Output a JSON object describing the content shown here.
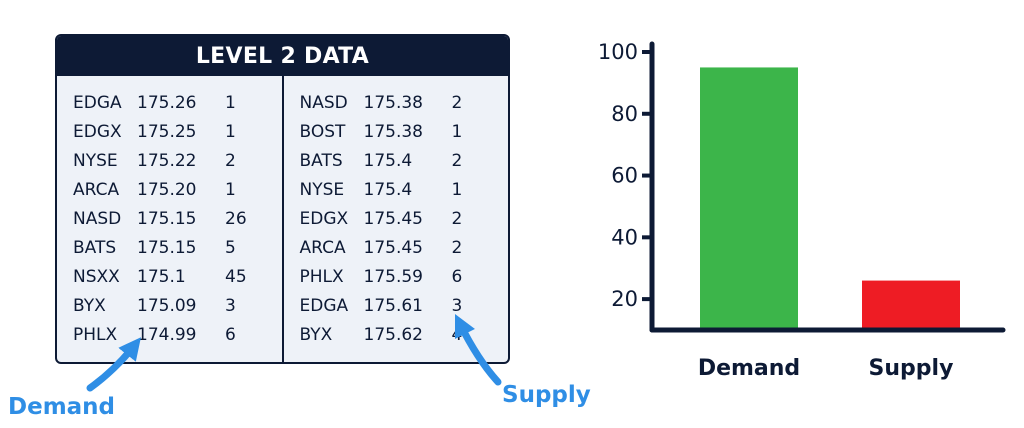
{
  "table": {
    "title": "LEVEL 2 DATA",
    "bids": [
      {
        "exchange": "EDGA",
        "price": "175.26",
        "size": "1"
      },
      {
        "exchange": "EDGX",
        "price": "175.25",
        "size": "1"
      },
      {
        "exchange": "NYSE",
        "price": "175.22",
        "size": "2"
      },
      {
        "exchange": "ARCA",
        "price": "175.20",
        "size": "1"
      },
      {
        "exchange": "NASD",
        "price": "175.15",
        "size": "26"
      },
      {
        "exchange": "BATS",
        "price": "175.15",
        "size": "5"
      },
      {
        "exchange": "NSXX",
        "price": "175.1",
        "size": "45"
      },
      {
        "exchange": "BYX",
        "price": "175.09",
        "size": "3"
      },
      {
        "exchange": "PHLX",
        "price": "174.99",
        "size": "6"
      }
    ],
    "asks": [
      {
        "exchange": "NASD",
        "price": "175.38",
        "size": "2"
      },
      {
        "exchange": "BOST",
        "price": "175.38",
        "size": "1"
      },
      {
        "exchange": "BATS",
        "price": "175.4",
        "size": "2"
      },
      {
        "exchange": "NYSE",
        "price": "175.4",
        "size": "1"
      },
      {
        "exchange": "EDGX",
        "price": "175.45",
        "size": "2"
      },
      {
        "exchange": "ARCA",
        "price": "175.45",
        "size": "2"
      },
      {
        "exchange": "PHLX",
        "price": "175.59",
        "size": "6"
      },
      {
        "exchange": "EDGA",
        "price": "175.61",
        "size": "3"
      },
      {
        "exchange": "BYX",
        "price": "175.62",
        "size": "4"
      }
    ]
  },
  "annotations": {
    "demand": "Demand",
    "supply": "Supply",
    "arrow_color": "#2f8ee5"
  },
  "chart_data": {
    "type": "bar",
    "categories": [
      "Demand",
      "Supply"
    ],
    "values": [
      95,
      26
    ],
    "colors": [
      "#3cb54a",
      "#ee1c24"
    ],
    "title": "",
    "xlabel": "",
    "ylabel": "",
    "ylim": [
      10,
      100
    ],
    "yticks": [
      20,
      40,
      60,
      80,
      100
    ],
    "grid": false
  }
}
